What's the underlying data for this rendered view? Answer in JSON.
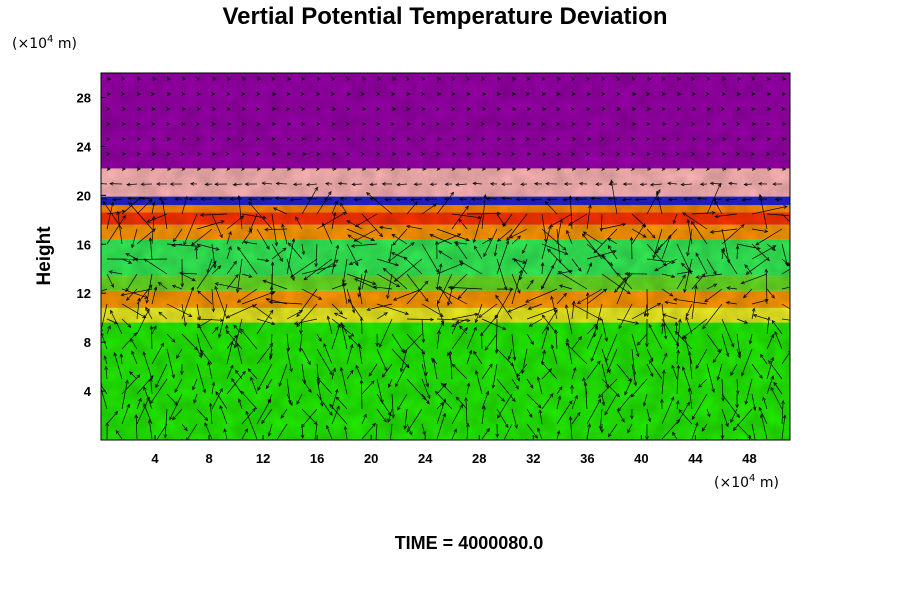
{
  "chart_data": {
    "type": "heatmap",
    "title": "Vertial Potential Temperature Deviation",
    "ylabel": "Height",
    "x_unit_prefix": "(×10",
    "x_unit_exp": "4",
    "x_unit_suffix": " m)",
    "y_unit_prefix": "(×10",
    "y_unit_exp": "4",
    "y_unit_suffix": " m)",
    "xlim": [
      0,
      51
    ],
    "ylim": [
      0,
      30
    ],
    "x_ticks": [
      4,
      8,
      12,
      16,
      20,
      24,
      28,
      32,
      36,
      40,
      44,
      48
    ],
    "y_ticks": [
      4,
      8,
      12,
      16,
      20,
      24,
      28
    ],
    "x_tick_labels": [
      "4",
      "8",
      "12",
      "16",
      "20",
      "24",
      "28",
      "32",
      "36",
      "40",
      "44",
      "48"
    ],
    "y_tick_labels": [
      "4",
      "8",
      "12",
      "16",
      "20",
      "24",
      "28"
    ],
    "grid": false,
    "overlay": "wind vectors",
    "time_label": "TIME = 4000080.0",
    "bands": [
      {
        "y0": 0,
        "y1": 9.6,
        "color": "#22ee00"
      },
      {
        "y0": 9.6,
        "y1": 10.8,
        "color": "#eeee22"
      },
      {
        "y0": 10.8,
        "y1": 12.2,
        "color": "#ff9900"
      },
      {
        "y0": 12.2,
        "y1": 13.4,
        "color": "#66dd22"
      },
      {
        "y0": 13.4,
        "y1": 16.4,
        "color": "#33ee55"
      },
      {
        "y0": 16.4,
        "y1": 17.6,
        "color": "#ff9900"
      },
      {
        "y0": 17.6,
        "y1": 18.6,
        "color": "#ff3300"
      },
      {
        "y0": 18.6,
        "y1": 19.2,
        "color": "#ff8800"
      },
      {
        "y0": 19.2,
        "y1": 19.9,
        "color": "#2222cc"
      },
      {
        "y0": 19.9,
        "y1": 22.2,
        "color": "#ffb6b6"
      },
      {
        "y0": 22.2,
        "y1": 30,
        "color": "#9900aa"
      }
    ],
    "colors": {
      "background": "#ffffff",
      "axis": "#000000",
      "vector": "#000000"
    }
  }
}
